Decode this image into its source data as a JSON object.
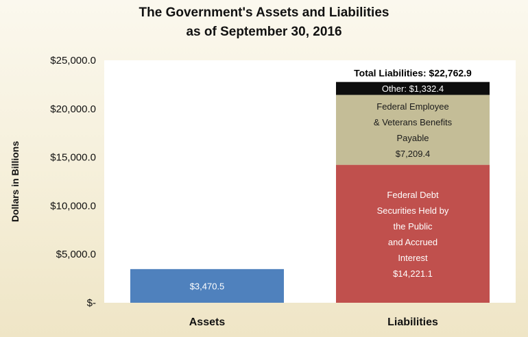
{
  "chart_data": {
    "type": "bar",
    "stacked": true,
    "title_lines": [
      "The Government's Assets and Liabilities",
      "as of September 30, 2016"
    ],
    "ylabel": "Dollars in Billions",
    "xlabel": "",
    "ylim": [
      0,
      25000
    ],
    "yticks": [
      0,
      5000,
      10000,
      15000,
      20000,
      25000
    ],
    "ytick_labels": [
      "$-",
      "$5,000.0",
      "$10,000.0",
      "$15,000.0",
      "$20,000.0",
      "$25,000.0"
    ],
    "grid": false,
    "categories": [
      "Assets",
      "Liabilities"
    ],
    "bars": [
      {
        "category": "Assets",
        "segments": [
          {
            "name": "Assets",
            "value": 3470.5,
            "label_lines": [
              "$3,470.5"
            ],
            "color": "#4f81bd",
            "text_style": "light"
          }
        ]
      },
      {
        "category": "Liabilities",
        "total_label": "Total Liabilities: $22,762.9",
        "total_value": 22762.9,
        "segments": [
          {
            "name": "Federal Debt Securities Held by the Public and Accrued Interest",
            "value": 14221.1,
            "label_lines": [
              "Federal Debt",
              "Securities Held by",
              "the Public",
              "and Accrued",
              "Interest",
              "$14,221.1"
            ],
            "color": "#c0504d",
            "text_style": "light"
          },
          {
            "name": "Federal Employee & Veterans Benefits Payable",
            "value": 7209.4,
            "label_lines": [
              "Federal Employee",
              "& Veterans Benefits",
              "Payable",
              "$7,209.4"
            ],
            "color": "#c4bd97",
            "text_style": "dark"
          },
          {
            "name": "Other",
            "value": 1332.4,
            "label_lines": [
              "Other:  $1,332.4"
            ],
            "color": "#0d0d0d",
            "text_style": "light"
          }
        ]
      }
    ]
  }
}
